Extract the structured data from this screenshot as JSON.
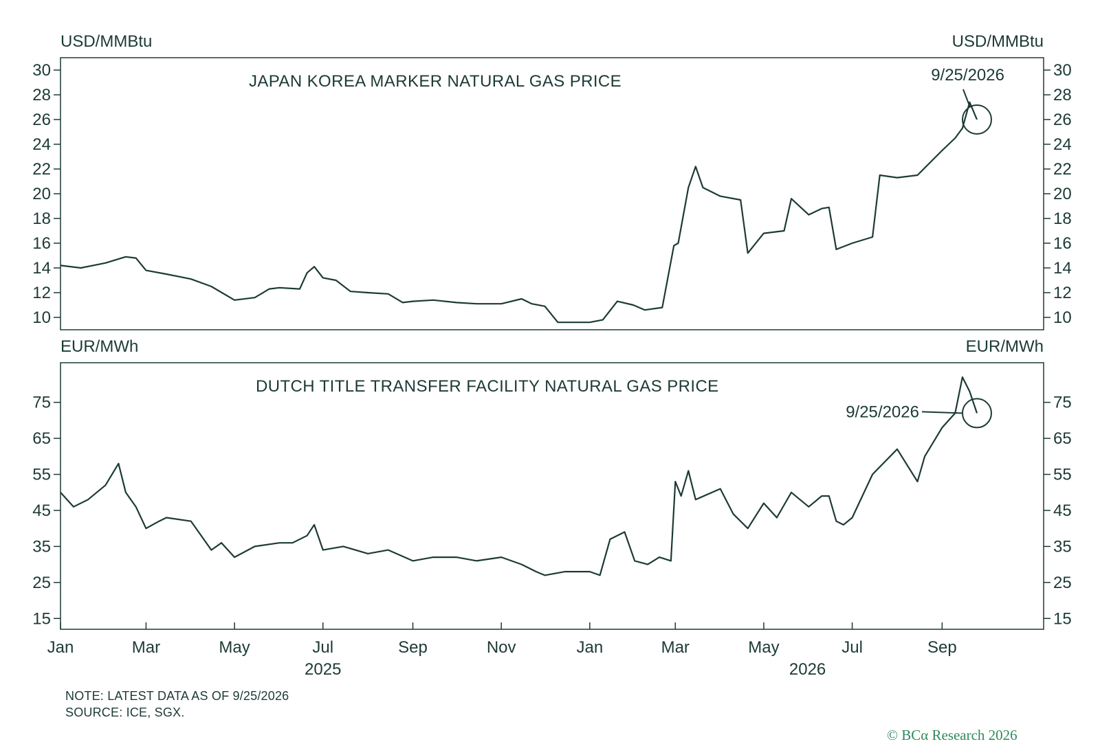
{
  "note_line1": "NOTE: LATEST DATA AS OF 9/25/2026",
  "note_line2": "SOURCE: ICE, SGX.",
  "credit": "© BCα Research 2026",
  "colors": {
    "line": "#1c3a36",
    "credit": "#2f8a5c",
    "frame": "#1c3a36"
  },
  "chart_data": [
    {
      "type": "line",
      "title": "JAPAN KOREA MARKER NATURAL GAS PRICE",
      "y_unit_left": "USD/MMBtu",
      "y_unit_right": "USD/MMBtu",
      "ylim": [
        9,
        31
      ],
      "yticks": [
        10,
        12,
        14,
        16,
        18,
        20,
        22,
        24,
        26,
        28,
        30
      ],
      "annotation": {
        "label": "9/25/2026",
        "x": "2026-09-25",
        "y": 26.0
      },
      "series": [
        {
          "x": [
            "2025-01-01",
            "2025-01-15",
            "2025-02-01",
            "2025-02-15",
            "2025-02-22",
            "2025-03-01",
            "2025-03-15",
            "2025-04-01",
            "2025-04-15",
            "2025-05-01",
            "2025-05-15",
            "2025-05-25",
            "2025-06-01",
            "2025-06-15",
            "2025-06-20",
            "2025-06-25",
            "2025-07-01",
            "2025-07-10",
            "2025-07-20",
            "2025-08-01",
            "2025-08-15",
            "2025-08-25",
            "2025-09-01",
            "2025-09-15",
            "2025-10-01",
            "2025-10-15",
            "2025-11-01",
            "2025-11-15",
            "2025-11-22",
            "2025-12-01",
            "2025-12-10",
            "2026-01-01",
            "2026-01-10",
            "2026-01-20",
            "2026-01-31",
            "2026-02-08",
            "2026-02-20",
            "2026-02-28",
            "2026-03-03",
            "2026-03-10",
            "2026-03-15",
            "2026-03-20",
            "2026-04-01",
            "2026-04-15",
            "2026-04-20",
            "2026-05-01",
            "2026-05-15",
            "2026-05-20",
            "2026-06-01",
            "2026-06-10",
            "2026-06-15",
            "2026-06-20",
            "2026-07-01",
            "2026-07-15",
            "2026-07-20",
            "2026-08-01",
            "2026-08-15",
            "2026-09-01",
            "2026-09-10",
            "2026-09-15",
            "2026-09-20",
            "2026-09-25"
          ],
          "values": [
            14.2,
            14.0,
            14.4,
            14.9,
            14.8,
            13.8,
            13.5,
            13.1,
            12.5,
            11.4,
            11.6,
            12.3,
            12.4,
            12.3,
            13.6,
            14.1,
            13.2,
            13.0,
            12.1,
            12.0,
            11.9,
            11.2,
            11.3,
            11.4,
            11.2,
            11.1,
            11.1,
            11.5,
            11.1,
            10.9,
            9.6,
            9.6,
            9.8,
            11.3,
            11.0,
            10.6,
            10.8,
            15.8,
            16.0,
            20.5,
            22.2,
            20.5,
            19.8,
            19.5,
            15.2,
            16.8,
            17.0,
            19.6,
            18.3,
            18.8,
            18.9,
            15.5,
            16.0,
            16.5,
            21.5,
            21.3,
            21.5,
            23.5,
            24.5,
            25.3,
            27.4,
            26.0
          ]
        }
      ]
    },
    {
      "type": "line",
      "title": "DUTCH TITLE TRANSFER FACILITY NATURAL GAS PRICE",
      "y_unit_left": "EUR/MWh",
      "y_unit_right": "EUR/MWh",
      "ylim": [
        12,
        86
      ],
      "yticks": [
        15,
        25,
        35,
        45,
        55,
        65,
        75
      ],
      "annotation": {
        "label": "9/25/2026",
        "x": "2026-09-25",
        "y": 72.0
      },
      "x_tick_labels": [
        "Jan",
        "Mar",
        "May",
        "Jul",
        "Sep",
        "Nov",
        "Jan",
        "Mar",
        "May",
        "Jul",
        "Sep"
      ],
      "x_year_labels": [
        "2025",
        "2026"
      ],
      "series": [
        {
          "x": [
            "2025-01-01",
            "2025-01-10",
            "2025-01-20",
            "2025-02-01",
            "2025-02-10",
            "2025-02-15",
            "2025-02-22",
            "2025-03-01",
            "2025-03-10",
            "2025-03-15",
            "2025-04-01",
            "2025-04-15",
            "2025-04-22",
            "2025-05-01",
            "2025-05-15",
            "2025-06-01",
            "2025-06-10",
            "2025-06-20",
            "2025-06-25",
            "2025-07-01",
            "2025-07-15",
            "2025-08-01",
            "2025-08-15",
            "2025-09-01",
            "2025-09-15",
            "2025-10-01",
            "2025-10-15",
            "2025-11-01",
            "2025-11-15",
            "2025-11-25",
            "2025-12-01",
            "2025-12-15",
            "2026-01-01",
            "2026-01-08",
            "2026-01-15",
            "2026-01-25",
            "2026-02-01",
            "2026-02-10",
            "2026-02-18",
            "2026-02-26",
            "2026-03-01",
            "2026-03-05",
            "2026-03-10",
            "2026-03-15",
            "2026-04-01",
            "2026-04-10",
            "2026-04-20",
            "2026-05-01",
            "2026-05-10",
            "2026-05-20",
            "2026-06-01",
            "2026-06-10",
            "2026-06-15",
            "2026-06-20",
            "2026-06-25",
            "2026-07-01",
            "2026-07-15",
            "2026-08-01",
            "2026-08-15",
            "2026-08-20",
            "2026-09-01",
            "2026-09-10",
            "2026-09-15",
            "2026-09-20",
            "2026-09-25"
          ],
          "values": [
            50,
            46,
            48,
            52,
            58,
            50,
            46,
            40,
            42,
            43,
            42,
            34,
            36,
            32,
            35,
            36,
            36,
            38,
            41,
            34,
            35,
            33,
            34,
            31,
            32,
            32,
            31,
            32,
            30,
            28,
            27,
            28,
            28,
            27,
            37,
            39,
            31,
            30,
            32,
            31,
            53,
            49,
            56,
            48,
            51,
            44,
            40,
            47,
            43,
            50,
            46,
            49,
            49,
            42,
            41,
            43,
            55,
            62,
            53,
            60,
            68,
            72,
            82,
            78,
            72
          ]
        }
      ]
    }
  ]
}
